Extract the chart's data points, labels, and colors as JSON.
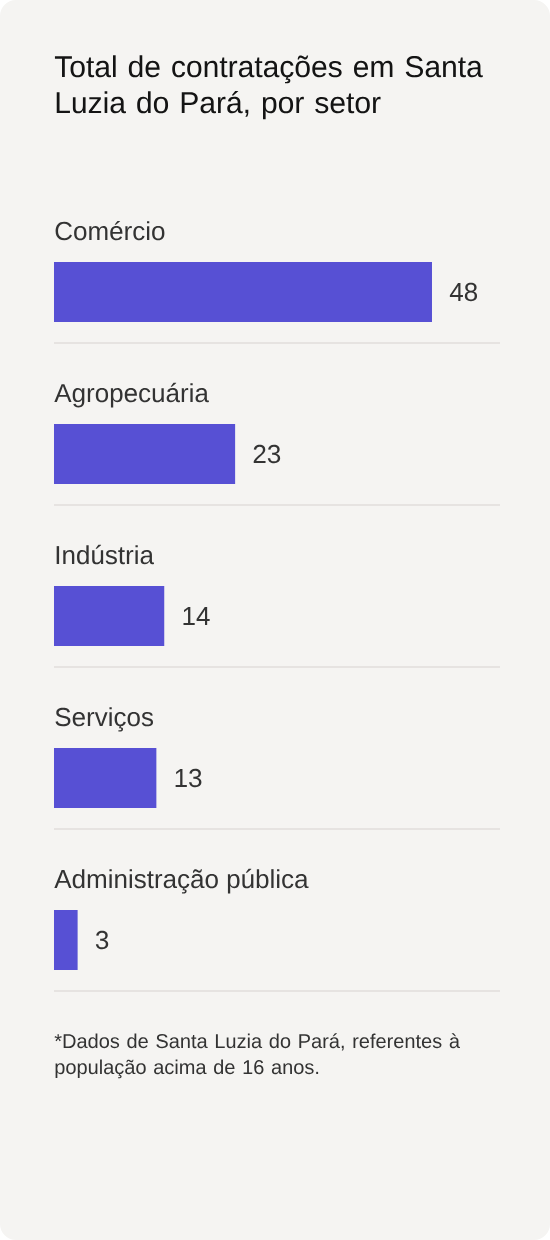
{
  "chart_data": {
    "type": "bar",
    "orientation": "horizontal",
    "title": "Total de contratações em Santa Luzia do Pará, por setor",
    "categories": [
      "Comércio",
      "Agropecuária",
      "Indústria",
      "Serviços",
      "Administração pública"
    ],
    "values": [
      48,
      23,
      14,
      13,
      3
    ],
    "color": "#5750d4",
    "data_labels": true,
    "annotations": [
      "*Dados de Santa Luzia do Pará, referentes à população acima de 16 anos."
    ]
  }
}
